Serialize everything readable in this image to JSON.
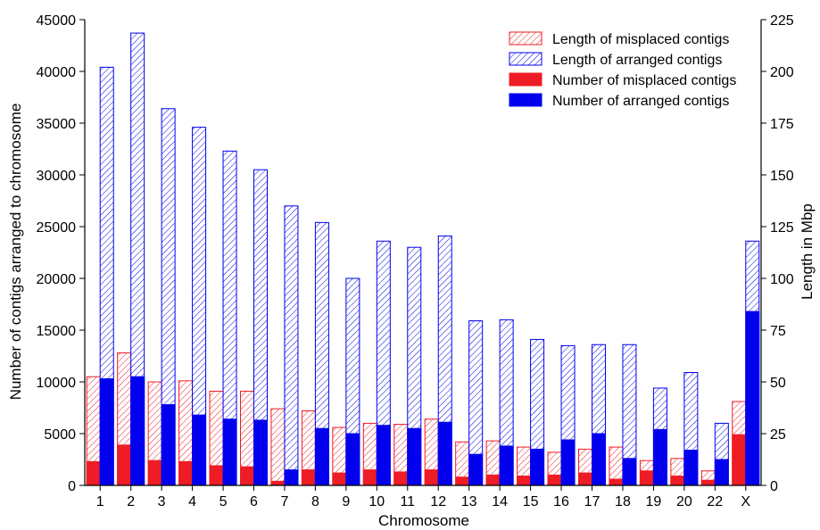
{
  "chart_data": {
    "type": "bar",
    "xlabel": "Chromosome",
    "ylabel": "Number of contigs arranged to chromosome",
    "y2label": "Length in Mbp",
    "ylim": [
      0,
      45000
    ],
    "y2lim": [
      0,
      225
    ],
    "yticks": [
      "0",
      "5000",
      "10000",
      "15000",
      "20000",
      "25000",
      "30000",
      "35000",
      "40000",
      "45000"
    ],
    "y2ticks": [
      "0",
      "25",
      "50",
      "75",
      "100",
      "125",
      "150",
      "175",
      "200",
      "225"
    ],
    "categories": [
      "1",
      "2",
      "3",
      "4",
      "5",
      "6",
      "7",
      "8",
      "9",
      "10",
      "11",
      "12",
      "13",
      "14",
      "15",
      "16",
      "17",
      "18",
      "19",
      "20",
      "22",
      "X"
    ],
    "legend_position": "top-right",
    "series": [
      {
        "name": "Length of misplaced contigs",
        "axis": "right",
        "fill": "hatched",
        "color": "#ee1c25",
        "values": [
          52.5,
          64,
          50,
          50.5,
          45.5,
          45.5,
          37,
          36,
          28,
          30,
          29.5,
          32,
          21,
          21.5,
          18.5,
          16,
          17.5,
          18.5,
          12,
          13,
          7,
          40.5
        ]
      },
      {
        "name": "Length of arranged contigs",
        "axis": "right",
        "fill": "hatched",
        "color": "#0000ee",
        "values": [
          202,
          218.5,
          182,
          173,
          161.5,
          152.5,
          135,
          127,
          100,
          118,
          115,
          120.5,
          79.5,
          80,
          70.5,
          67.5,
          68,
          68,
          47,
          54.5,
          30,
          118
        ]
      },
      {
        "name": "Number of misplaced contigs",
        "axis": "left",
        "fill": "solid",
        "color": "#ee1c25",
        "values": [
          2300,
          3900,
          2400,
          2300,
          1900,
          1800,
          400,
          1500,
          1200,
          1500,
          1300,
          1500,
          800,
          1000,
          900,
          1000,
          1200,
          600,
          1400,
          900,
          500,
          4900
        ]
      },
      {
        "name": "Number of arranged contigs",
        "axis": "left",
        "fill": "solid",
        "color": "#0000ee",
        "values": [
          10300,
          10500,
          7800,
          6800,
          6400,
          6300,
          1500,
          5500,
          5000,
          5800,
          5500,
          6100,
          3000,
          3800,
          3500,
          4400,
          5000,
          2600,
          5400,
          3400,
          2500,
          16800
        ]
      }
    ]
  }
}
